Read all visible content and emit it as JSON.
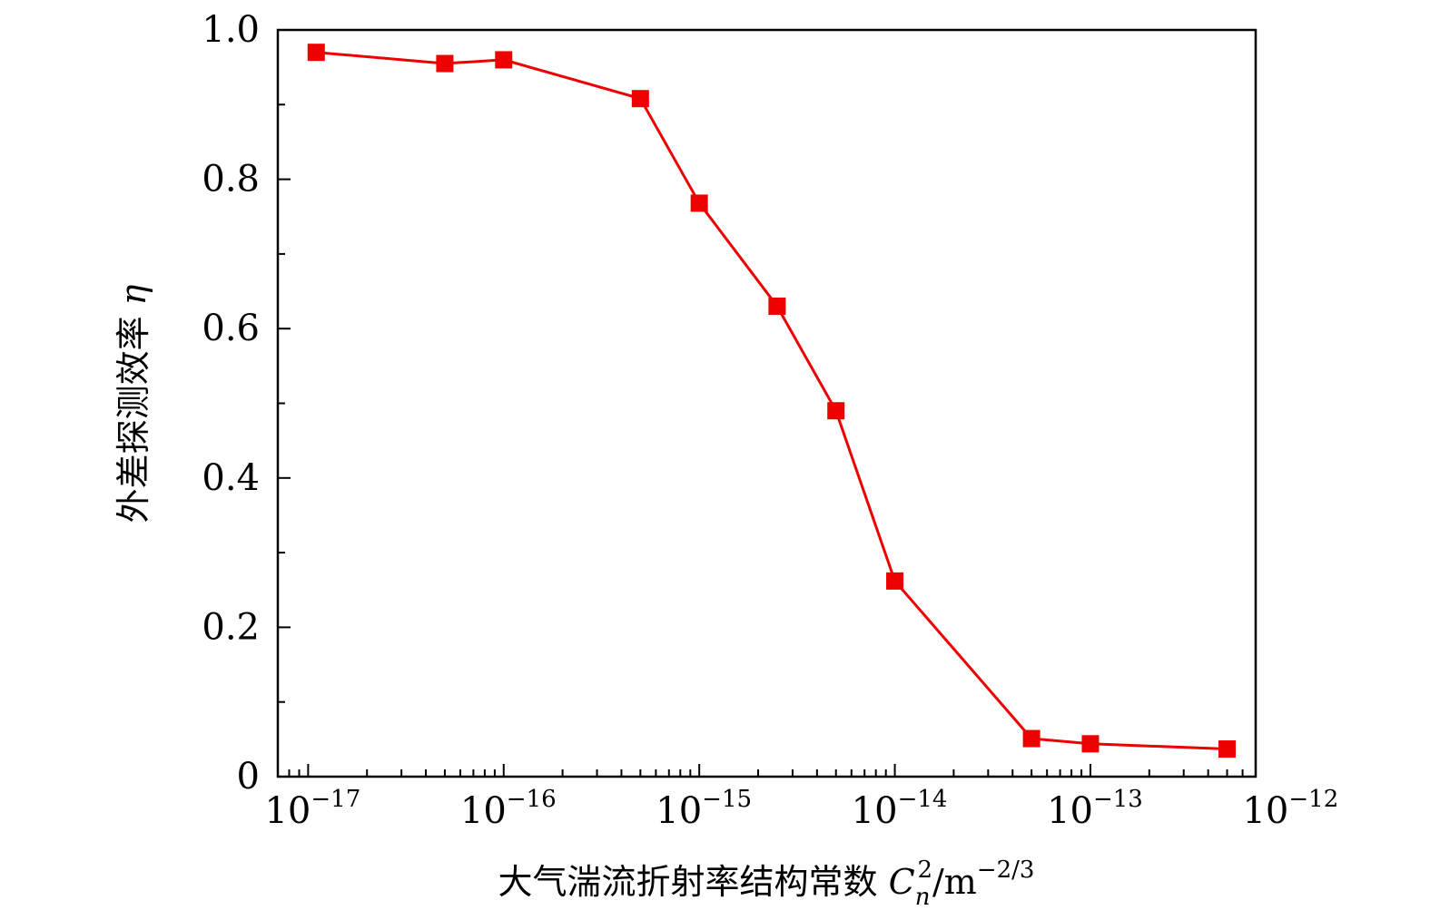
{
  "chart_data": {
    "type": "line",
    "xscale": "log",
    "xlim": [
      7e-18,
      7e-13
    ],
    "ylim": [
      0,
      1.0
    ],
    "xlabel": "大气湍流折射率结构常数 C_n^2/m^-2/3",
    "ylabel": "外差探测效率 η",
    "xlabel_parts": {
      "text": "大气湍流折射率结构常数 ",
      "symbol": "C",
      "subscript": "n",
      "superscript": "2",
      "unit": "/m",
      "unit_exp": "−2/3"
    },
    "ylabel_parts": {
      "text": "外差探测效率 ",
      "symbol": "η"
    },
    "xticks": [
      {
        "value": 1e-17,
        "base": "10",
        "exp": "−17"
      },
      {
        "value": 1e-16,
        "base": "10",
        "exp": "−16"
      },
      {
        "value": 1e-15,
        "base": "10",
        "exp": "−15"
      },
      {
        "value": 1e-14,
        "base": "10",
        "exp": "−14"
      },
      {
        "value": 1e-13,
        "base": "10",
        "exp": "−13"
      },
      {
        "value": 1e-12,
        "base": "10",
        "exp": "−12"
      }
    ],
    "yticks": [
      {
        "value": 0,
        "label": "0"
      },
      {
        "value": 0.2,
        "label": "0.2"
      },
      {
        "value": 0.4,
        "label": "0.4"
      },
      {
        "value": 0.6,
        "label": "0.6"
      },
      {
        "value": 0.8,
        "label": "0.8"
      },
      {
        "value": 1.0,
        "label": "1.0"
      }
    ],
    "grid": false,
    "series": [
      {
        "color": "#ee0000",
        "marker": "square",
        "x": [
          1.1e-17,
          5e-17,
          1e-16,
          5e-16,
          1e-15,
          2.5e-15,
          5e-15,
          1e-14,
          5e-14,
          1e-13,
          5e-13
        ],
        "y": [
          0.97,
          0.955,
          0.96,
          0.908,
          0.768,
          0.63,
          0.49,
          0.262,
          0.051,
          0.044,
          0.037
        ]
      }
    ]
  }
}
